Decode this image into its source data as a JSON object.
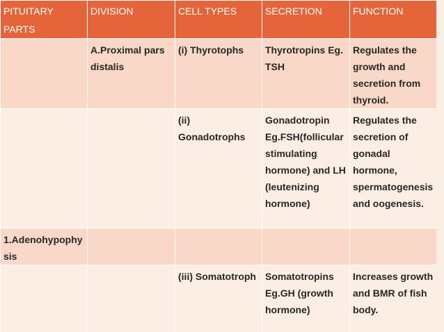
{
  "headers": [
    "PITUITARY PARTS",
    "DIVISION",
    "CELL TYPES",
    "SECRETION",
    "FUNCTION"
  ],
  "rows": [
    {
      "style": "dark",
      "cells": [
        "",
        "A.Proximal pars distalis",
        "(i) Thyrotophs",
        "Thyrotropins Eg. TSH",
        "Regulates the growth and secretion from thyroid."
      ]
    },
    {
      "style": "light",
      "cells": [
        "",
        "",
        "(ii) Gonadotrophs",
        "Gonadotropin Eg.FSH(follicular stimulating hormone) and LH (leutenizing hormone)",
        "Regulates the secretion of gonadal hormone, spermatogenesis and oogenesis."
      ]
    },
    {
      "style": "dark",
      "cells": [
        "1.Adenohypophysis",
        "",
        "",
        "",
        ""
      ]
    },
    {
      "style": "light",
      "cells": [
        "",
        "",
        "(iii) Somatotroph",
        "Somatotropins Eg.GH (growth hormone)",
        "Increases growth and BMR of fish body."
      ]
    }
  ]
}
